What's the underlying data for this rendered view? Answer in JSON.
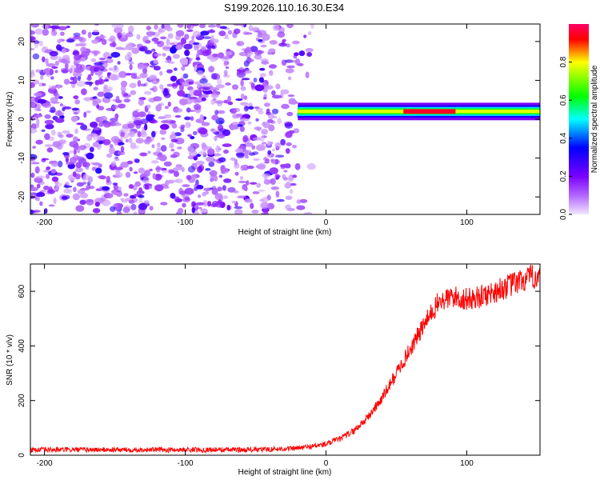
{
  "title": "S199.2026.110.16.30.E34",
  "chart_data": [
    {
      "type": "heatmap",
      "title": "S199.2026.110.16.30.E34",
      "xlabel": "Height of straight line (km)",
      "ylabel": "Frequency (Hz)",
      "xlim": [
        -210,
        152
      ],
      "ylim": [
        -24.5,
        24.5
      ],
      "xticks": [
        -200,
        -100,
        0,
        100
      ],
      "yticks": [
        -20,
        -10,
        0,
        10,
        20
      ],
      "colorbar": {
        "label": "Normalized spectral amplitude",
        "range": [
          0,
          1
        ],
        "ticks": [
          0.0,
          0.2,
          0.4,
          0.6,
          0.8
        ],
        "colors": [
          "#f2e6ff",
          "#b266ff",
          "#7a00ff",
          "#0000ff",
          "#00ffff",
          "#00ff00",
          "#ffff00",
          "#ff0000",
          "#ff0066"
        ]
      },
      "features": {
        "noise_region_x": [
          -210,
          -20
        ],
        "signal_band_x": [
          -20,
          152
        ],
        "signal_band_freq_hz": [
          0.5,
          3.5
        ],
        "peak_x": [
          55,
          92
        ],
        "peak_amplitude": 0.95
      }
    },
    {
      "type": "line",
      "title": "",
      "xlabel": "Height of straight line (km)",
      "ylabel": "SNR (10 * v/v)",
      "xlim": [
        -210,
        152
      ],
      "ylim": [
        0,
        700
      ],
      "xticks": [
        -200,
        -100,
        0,
        100
      ],
      "yticks": [
        0,
        200,
        400,
        600
      ],
      "series": [
        {
          "name": "SNR",
          "color": "#ff0000",
          "x": [
            -210,
            -150,
            -100,
            -50,
            -20,
            0,
            10,
            20,
            30,
            40,
            50,
            60,
            70,
            80,
            90,
            100,
            110,
            120,
            130,
            140,
            152
          ],
          "y": [
            20,
            20,
            20,
            20,
            25,
            40,
            60,
            90,
            140,
            210,
            300,
            390,
            480,
            560,
            580,
            570,
            580,
            600,
            620,
            640,
            660
          ]
        }
      ]
    }
  ]
}
